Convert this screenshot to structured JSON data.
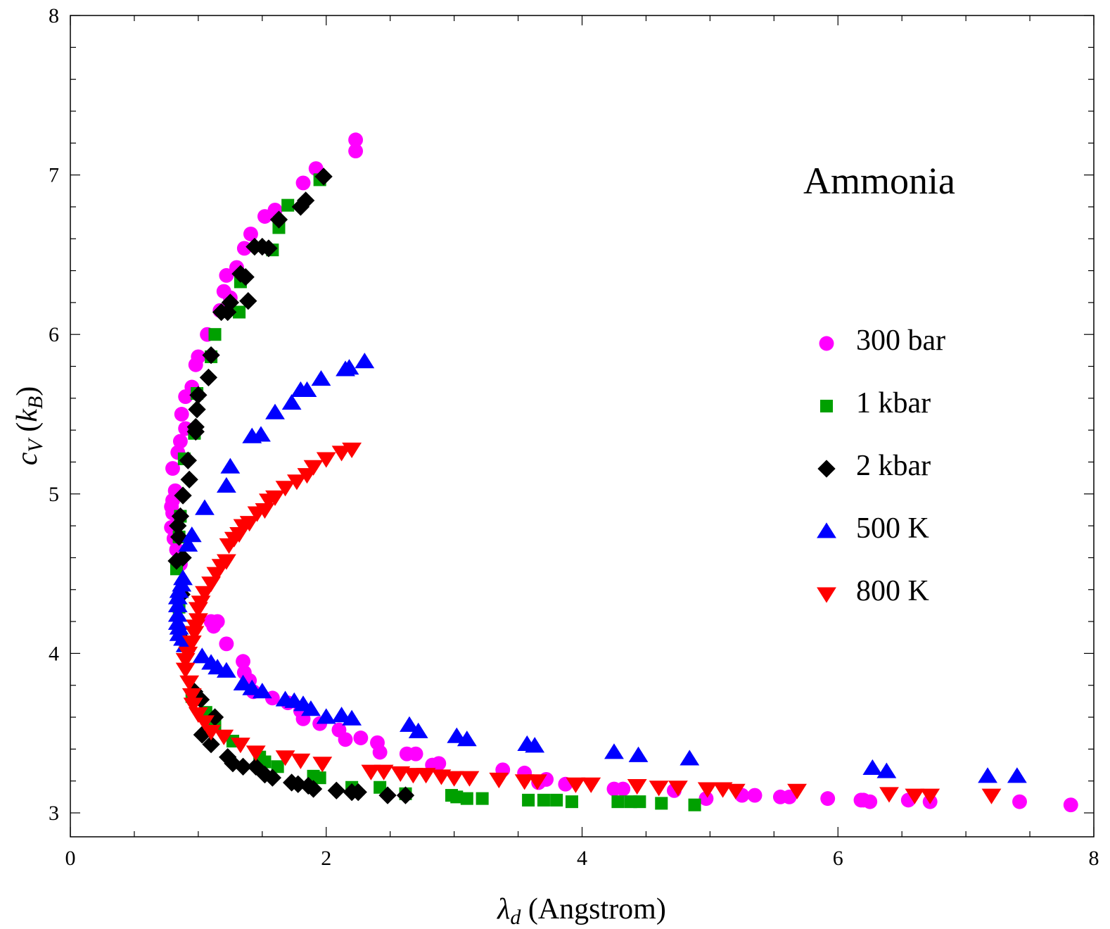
{
  "chart_data": {
    "type": "scatter",
    "title": "",
    "annotation": "Ammonia",
    "xlabel": {
      "symbol": "λ",
      "sub": "d",
      "rest": " (Angstrom)"
    },
    "ylabel": {
      "symbol": "c",
      "sub": "V",
      "rest_open": " (",
      "unit": "k",
      "unit_sub": "B",
      "rest_close": ")"
    },
    "xlim": [
      0,
      8
    ],
    "ylim": [
      2.85,
      8
    ],
    "x_ticks": [
      0,
      2,
      4,
      6,
      8
    ],
    "y_ticks": [
      3,
      4,
      5,
      6,
      7,
      8
    ],
    "x_tick_labels": [
      "0",
      "2",
      "4",
      "6",
      "8"
    ],
    "y_tick_labels": [
      "3",
      "4",
      "5",
      "6",
      "7",
      "8"
    ],
    "grid": false,
    "legend_position": "right",
    "series": [
      {
        "name": "300 bar",
        "marker": "circle",
        "color": "#ff00ff",
        "points": [
          [
            2.23,
            7.22
          ],
          [
            2.23,
            7.15
          ],
          [
            1.92,
            7.04
          ],
          [
            1.82,
            6.95
          ],
          [
            1.6,
            6.78
          ],
          [
            1.52,
            6.74
          ],
          [
            1.41,
            6.63
          ],
          [
            1.36,
            6.54
          ],
          [
            1.3,
            6.42
          ],
          [
            1.22,
            6.37
          ],
          [
            1.2,
            6.27
          ],
          [
            1.25,
            6.23
          ],
          [
            1.17,
            6.15
          ],
          [
            1.07,
            6.0
          ],
          [
            1.0,
            5.86
          ],
          [
            0.98,
            5.81
          ],
          [
            0.95,
            5.67
          ],
          [
            0.9,
            5.61
          ],
          [
            0.87,
            5.5
          ],
          [
            0.9,
            5.41
          ],
          [
            0.86,
            5.33
          ],
          [
            0.84,
            5.26
          ],
          [
            0.8,
            5.16
          ],
          [
            0.82,
            5.02
          ],
          [
            0.8,
            4.96
          ],
          [
            0.79,
            4.92
          ],
          [
            0.8,
            4.88
          ],
          [
            0.79,
            4.79
          ],
          [
            0.81,
            4.72
          ],
          [
            0.83,
            4.65
          ],
          [
            0.86,
            4.56
          ],
          [
            1.1,
            4.2
          ],
          [
            1.15,
            4.2
          ],
          [
            1.12,
            4.17
          ],
          [
            1.22,
            4.06
          ],
          [
            1.35,
            3.95
          ],
          [
            1.36,
            3.88
          ],
          [
            1.4,
            3.83
          ],
          [
            1.43,
            3.76
          ],
          [
            1.58,
            3.72
          ],
          [
            1.7,
            3.69
          ],
          [
            1.8,
            3.64
          ],
          [
            1.82,
            3.59
          ],
          [
            1.95,
            3.56
          ],
          [
            2.1,
            3.52
          ],
          [
            2.15,
            3.46
          ],
          [
            2.27,
            3.47
          ],
          [
            2.4,
            3.44
          ],
          [
            2.42,
            3.38
          ],
          [
            2.63,
            3.37
          ],
          [
            2.7,
            3.37
          ],
          [
            2.83,
            3.3
          ],
          [
            2.88,
            3.31
          ],
          [
            3.38,
            3.27
          ],
          [
            3.55,
            3.25
          ],
          [
            3.66,
            3.19
          ],
          [
            3.72,
            3.21
          ],
          [
            3.87,
            3.18
          ],
          [
            4.25,
            3.15
          ],
          [
            4.32,
            3.15
          ],
          [
            4.72,
            3.14
          ],
          [
            4.97,
            3.09
          ],
          [
            5.25,
            3.11
          ],
          [
            5.35,
            3.11
          ],
          [
            5.55,
            3.1
          ],
          [
            5.62,
            3.1
          ],
          [
            5.92,
            3.09
          ],
          [
            6.18,
            3.08
          ],
          [
            6.2,
            3.08
          ],
          [
            6.25,
            3.07
          ],
          [
            6.55,
            3.08
          ],
          [
            6.72,
            3.07
          ],
          [
            7.42,
            3.07
          ],
          [
            7.82,
            3.05
          ]
        ]
      },
      {
        "name": "1 kbar",
        "marker": "square",
        "color": "#00a000",
        "points": [
          [
            1.95,
            6.97
          ],
          [
            1.7,
            6.81
          ],
          [
            1.63,
            6.67
          ],
          [
            1.58,
            6.53
          ],
          [
            1.33,
            6.33
          ],
          [
            1.32,
            6.14
          ],
          [
            1.13,
            6.0
          ],
          [
            1.1,
            5.86
          ],
          [
            0.99,
            5.63
          ],
          [
            0.97,
            5.38
          ],
          [
            0.89,
            5.22
          ],
          [
            0.86,
            4.86
          ],
          [
            0.85,
            4.73
          ],
          [
            0.83,
            4.53
          ],
          [
            0.85,
            4.29
          ],
          [
            0.9,
            4.05
          ],
          [
            0.95,
            3.73
          ],
          [
            1.06,
            3.63
          ],
          [
            1.13,
            3.55
          ],
          [
            1.27,
            3.45
          ],
          [
            1.48,
            3.35
          ],
          [
            1.52,
            3.32
          ],
          [
            1.62,
            3.29
          ],
          [
            1.9,
            3.23
          ],
          [
            1.95,
            3.22
          ],
          [
            2.2,
            3.16
          ],
          [
            2.42,
            3.16
          ],
          [
            2.62,
            3.12
          ],
          [
            2.98,
            3.11
          ],
          [
            3.02,
            3.1
          ],
          [
            3.1,
            3.09
          ],
          [
            3.22,
            3.09
          ],
          [
            3.58,
            3.08
          ],
          [
            3.7,
            3.08
          ],
          [
            3.8,
            3.08
          ],
          [
            3.92,
            3.07
          ],
          [
            4.28,
            3.07
          ],
          [
            4.38,
            3.07
          ],
          [
            4.45,
            3.07
          ],
          [
            4.62,
            3.06
          ],
          [
            4.88,
            3.05
          ]
        ]
      },
      {
        "name": "2 kbar",
        "marker": "diamond",
        "color": "#000000",
        "points": [
          [
            1.98,
            6.99
          ],
          [
            1.84,
            6.84
          ],
          [
            1.8,
            6.8
          ],
          [
            1.63,
            6.72
          ],
          [
            1.55,
            6.54
          ],
          [
            1.5,
            6.55
          ],
          [
            1.44,
            6.55
          ],
          [
            1.37,
            6.36
          ],
          [
            1.33,
            6.38
          ],
          [
            1.39,
            6.21
          ],
          [
            1.25,
            6.2
          ],
          [
            1.23,
            6.14
          ],
          [
            1.18,
            6.14
          ],
          [
            1.1,
            5.87
          ],
          [
            1.08,
            5.73
          ],
          [
            1.0,
            5.62
          ],
          [
            0.99,
            5.53
          ],
          [
            0.98,
            5.42
          ],
          [
            0.98,
            5.39
          ],
          [
            0.92,
            5.21
          ],
          [
            0.93,
            5.09
          ],
          [
            0.88,
            4.99
          ],
          [
            0.86,
            4.86
          ],
          [
            0.84,
            4.8
          ],
          [
            0.85,
            4.73
          ],
          [
            0.88,
            4.6
          ],
          [
            0.83,
            4.58
          ],
          [
            0.87,
            4.37
          ],
          [
            0.9,
            4.07
          ],
          [
            0.97,
            3.76
          ],
          [
            1.02,
            3.71
          ],
          [
            1.13,
            3.6
          ],
          [
            1.03,
            3.49
          ],
          [
            1.1,
            3.43
          ],
          [
            1.23,
            3.35
          ],
          [
            1.27,
            3.31
          ],
          [
            1.35,
            3.29
          ],
          [
            1.45,
            3.29
          ],
          [
            1.52,
            3.24
          ],
          [
            1.58,
            3.22
          ],
          [
            1.73,
            3.19
          ],
          [
            1.78,
            3.18
          ],
          [
            1.86,
            3.17
          ],
          [
            1.9,
            3.15
          ],
          [
            2.08,
            3.14
          ],
          [
            2.2,
            3.13
          ],
          [
            2.25,
            3.13
          ],
          [
            2.48,
            3.11
          ],
          [
            2.62,
            3.11
          ]
        ]
      },
      {
        "name": "500 K",
        "marker": "triangle-up",
        "color": "#0000ff",
        "points": [
          [
            2.3,
            5.83
          ],
          [
            2.15,
            5.78
          ],
          [
            2.18,
            5.79
          ],
          [
            1.96,
            5.72
          ],
          [
            1.85,
            5.65
          ],
          [
            1.8,
            5.65
          ],
          [
            1.73,
            5.57
          ],
          [
            1.6,
            5.51
          ],
          [
            1.49,
            5.37
          ],
          [
            1.42,
            5.36
          ],
          [
            1.25,
            5.17
          ],
          [
            1.22,
            5.05
          ],
          [
            1.05,
            4.91
          ],
          [
            0.95,
            4.74
          ],
          [
            0.92,
            4.68
          ],
          [
            0.88,
            4.47
          ],
          [
            0.87,
            4.43
          ],
          [
            0.85,
            4.39
          ],
          [
            0.84,
            4.35
          ],
          [
            0.84,
            4.3
          ],
          [
            0.84,
            4.24
          ],
          [
            0.84,
            4.19
          ],
          [
            0.85,
            4.16
          ],
          [
            0.85,
            4.12
          ],
          [
            0.88,
            4.09
          ],
          [
            0.9,
            4.05
          ],
          [
            1.03,
            3.98
          ],
          [
            1.1,
            3.94
          ],
          [
            1.15,
            3.91
          ],
          [
            1.22,
            3.89
          ],
          [
            1.35,
            3.81
          ],
          [
            1.42,
            3.78
          ],
          [
            1.5,
            3.76
          ],
          [
            1.68,
            3.71
          ],
          [
            1.75,
            3.7
          ],
          [
            1.82,
            3.68
          ],
          [
            1.88,
            3.65
          ],
          [
            2.0,
            3.6
          ],
          [
            2.12,
            3.61
          ],
          [
            2.2,
            3.59
          ],
          [
            2.65,
            3.55
          ],
          [
            2.72,
            3.51
          ],
          [
            3.02,
            3.48
          ],
          [
            3.1,
            3.46
          ],
          [
            3.57,
            3.43
          ],
          [
            3.63,
            3.42
          ],
          [
            4.25,
            3.38
          ],
          [
            4.44,
            3.36
          ],
          [
            4.84,
            3.34
          ],
          [
            6.27,
            3.28
          ],
          [
            6.38,
            3.26
          ],
          [
            7.17,
            3.23
          ],
          [
            7.4,
            3.23
          ]
        ]
      },
      {
        "name": "800 K",
        "marker": "triangle-down",
        "color": "#ff0000",
        "points": [
          [
            2.2,
            5.28
          ],
          [
            2.12,
            5.26
          ],
          [
            2.0,
            5.22
          ],
          [
            1.9,
            5.17
          ],
          [
            1.85,
            5.12
          ],
          [
            1.77,
            5.08
          ],
          [
            1.68,
            5.04
          ],
          [
            1.6,
            4.98
          ],
          [
            1.55,
            4.96
          ],
          [
            1.52,
            4.9
          ],
          [
            1.46,
            4.88
          ],
          [
            1.4,
            4.82
          ],
          [
            1.35,
            4.8
          ],
          [
            1.32,
            4.75
          ],
          [
            1.28,
            4.72
          ],
          [
            1.24,
            4.68
          ],
          [
            1.22,
            4.58
          ],
          [
            1.18,
            4.55
          ],
          [
            1.14,
            4.5
          ],
          [
            1.1,
            4.44
          ],
          [
            1.05,
            4.38
          ],
          [
            1.02,
            4.32
          ],
          [
            1.0,
            4.28
          ],
          [
            1.0,
            4.21
          ],
          [
            0.98,
            4.17
          ],
          [
            0.97,
            4.13
          ],
          [
            0.95,
            4.07
          ],
          [
            0.92,
            4.0
          ],
          [
            0.9,
            3.96
          ],
          [
            0.9,
            3.9
          ],
          [
            0.93,
            3.82
          ],
          [
            0.95,
            3.74
          ],
          [
            0.96,
            3.68
          ],
          [
            1.0,
            3.62
          ],
          [
            1.05,
            3.57
          ],
          [
            1.1,
            3.51
          ],
          [
            1.2,
            3.48
          ],
          [
            1.33,
            3.43
          ],
          [
            1.45,
            3.38
          ],
          [
            1.68,
            3.35
          ],
          [
            1.8,
            3.33
          ],
          [
            1.97,
            3.31
          ],
          [
            2.35,
            3.26
          ],
          [
            2.45,
            3.26
          ],
          [
            2.58,
            3.25
          ],
          [
            2.68,
            3.24
          ],
          [
            2.78,
            3.24
          ],
          [
            2.9,
            3.23
          ],
          [
            3.0,
            3.22
          ],
          [
            3.12,
            3.22
          ],
          [
            3.35,
            3.21
          ],
          [
            3.55,
            3.2
          ],
          [
            3.65,
            3.2
          ],
          [
            3.95,
            3.18
          ],
          [
            4.07,
            3.18
          ],
          [
            4.43,
            3.17
          ],
          [
            4.6,
            3.16
          ],
          [
            4.75,
            3.16
          ],
          [
            4.98,
            3.15
          ],
          [
            5.1,
            3.15
          ],
          [
            5.2,
            3.14
          ],
          [
            5.68,
            3.14
          ],
          [
            6.4,
            3.12
          ],
          [
            6.6,
            3.11
          ],
          [
            6.72,
            3.11
          ],
          [
            7.2,
            3.11
          ]
        ]
      }
    ]
  }
}
